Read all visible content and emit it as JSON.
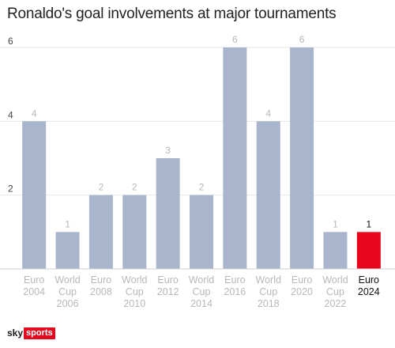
{
  "chart_data": {
    "type": "bar",
    "title": "Ronaldo's goal involvements at major tournaments",
    "xlabel": "",
    "ylabel": "",
    "ylim": [
      0,
      6
    ],
    "yticks": [
      2,
      4,
      6
    ],
    "grid": true,
    "categories": [
      [
        "Euro",
        "2004"
      ],
      [
        "World",
        "Cup",
        "2006"
      ],
      [
        "Euro",
        "2008"
      ],
      [
        "World",
        "Cup",
        "2010"
      ],
      [
        "Euro",
        "2012"
      ],
      [
        "World",
        "Cup",
        "2014"
      ],
      [
        "Euro",
        "2016"
      ],
      [
        "World",
        "Cup",
        "2018"
      ],
      [
        "Euro",
        "2020"
      ],
      [
        "World",
        "Cup",
        "2022"
      ],
      [
        "Euro",
        "2024"
      ]
    ],
    "values": [
      4,
      1,
      2,
      2,
      3,
      2,
      6,
      4,
      6,
      1,
      1
    ],
    "highlight_index": 10,
    "colors": {
      "bar": "#a8b5cc",
      "highlight": "#e8061c",
      "label": "#b8b8b8",
      "label_highlight": "#111111",
      "grid": "#e6e6e6",
      "axis_text": "#444444"
    }
  },
  "branding": {
    "sky": "sky",
    "sports": "sports"
  }
}
